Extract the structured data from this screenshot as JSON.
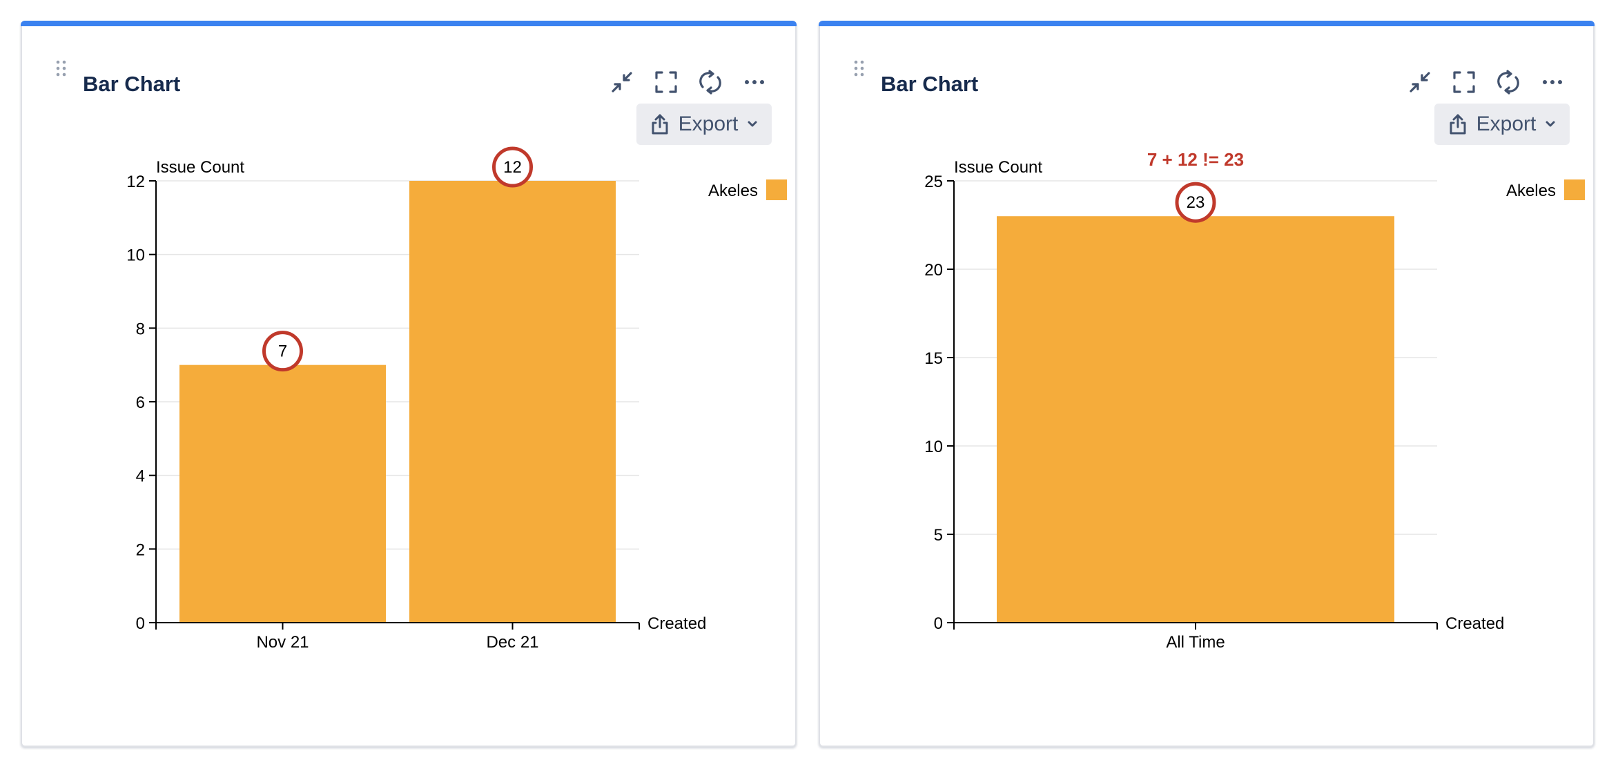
{
  "panels": [
    {
      "title": "Bar Chart",
      "export_label": "Export",
      "toolbar_icons": [
        "minimize-icon",
        "fullscreen-icon",
        "refresh-icon",
        "more-icon"
      ],
      "chart_data": {
        "type": "bar",
        "ylabel": "Issue Count",
        "xlabel": "Created",
        "categories": [
          "Nov 21",
          "Dec 21"
        ],
        "series": [
          {
            "name": "Akeles",
            "values": [
              7,
              12
            ],
            "color": "#f5ac3b"
          }
        ],
        "ylim": [
          0,
          12
        ],
        "yticks": [
          0,
          2,
          4,
          6,
          8,
          10,
          12
        ],
        "grid": true,
        "legend": "top-right",
        "circled_values": [
          7,
          12
        ],
        "annotation": ""
      }
    },
    {
      "title": "Bar Chart",
      "export_label": "Export",
      "toolbar_icons": [
        "minimize-icon",
        "fullscreen-icon",
        "refresh-icon",
        "more-icon"
      ],
      "chart_data": {
        "type": "bar",
        "ylabel": "Issue Count",
        "xlabel": "Created",
        "categories": [
          "All Time"
        ],
        "series": [
          {
            "name": "Akeles",
            "values": [
              23
            ],
            "color": "#f5ac3b"
          }
        ],
        "ylim": [
          0,
          25
        ],
        "yticks": [
          0,
          5,
          10,
          15,
          20,
          25
        ],
        "grid": true,
        "legend": "top-right",
        "circled_values": [
          23
        ],
        "annotation": "7 + 12 != 23"
      }
    }
  ],
  "colors": {
    "accent": "#3b82f0",
    "bar": "#f5ac3b",
    "highlight": "#c0392b",
    "title": "#172b4d"
  }
}
